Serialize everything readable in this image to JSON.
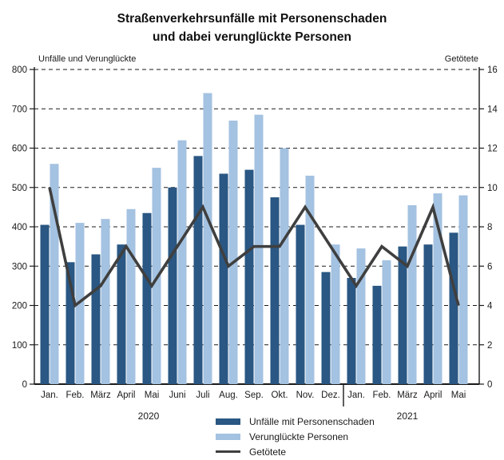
{
  "title": {
    "line1": "Straßenverkehrsunfälle mit Personenschaden",
    "line2": "und dabei verunglückte Personen"
  },
  "chart_data": {
    "type": "combo-bar-line",
    "categories": [
      "Jan.",
      "Feb.",
      "März",
      "April",
      "Mai",
      "Juni",
      "Juli",
      "Aug.",
      "Sep.",
      "Okt.",
      "Nov.",
      "Dez.",
      "Jan.",
      "Feb.",
      "März",
      "April",
      "Mai"
    ],
    "year_groups": [
      {
        "label": "2020",
        "from": 0,
        "to": 11
      },
      {
        "label": "2021",
        "from": 12,
        "to": 16
      }
    ],
    "left_axis": {
      "title": "Unfälle und Verunglückte",
      "min": 0,
      "max": 800,
      "step": 100
    },
    "right_axis": {
      "title": "Getötete",
      "min": 0,
      "max": 16,
      "step": 2
    },
    "grid": "horizontal-dashed",
    "legend_position": "bottom-center",
    "colors": {
      "axis": "#1a1a1a",
      "grid": "#1a1a1a",
      "text": "#1a1a1a"
    },
    "series": [
      {
        "name": "Unfälle mit Personenschaden",
        "type": "bar",
        "axis": "left",
        "color": "#2a5783",
        "values": [
          405,
          310,
          330,
          355,
          435,
          500,
          580,
          535,
          545,
          475,
          405,
          285,
          270,
          250,
          350,
          355,
          385
        ]
      },
      {
        "name": "Verunglückte Personen",
        "type": "bar",
        "axis": "left",
        "color": "#a4c2e1",
        "values": [
          560,
          410,
          420,
          445,
          550,
          620,
          740,
          670,
          685,
          600,
          530,
          355,
          345,
          315,
          455,
          485,
          480
        ]
      },
      {
        "name": "Getötete",
        "type": "line",
        "axis": "right",
        "color": "#3f3f3f",
        "values": [
          10,
          4,
          5,
          7,
          5,
          7,
          9,
          6,
          7,
          7,
          9,
          7,
          5,
          7,
          6,
          9,
          4
        ]
      }
    ]
  }
}
